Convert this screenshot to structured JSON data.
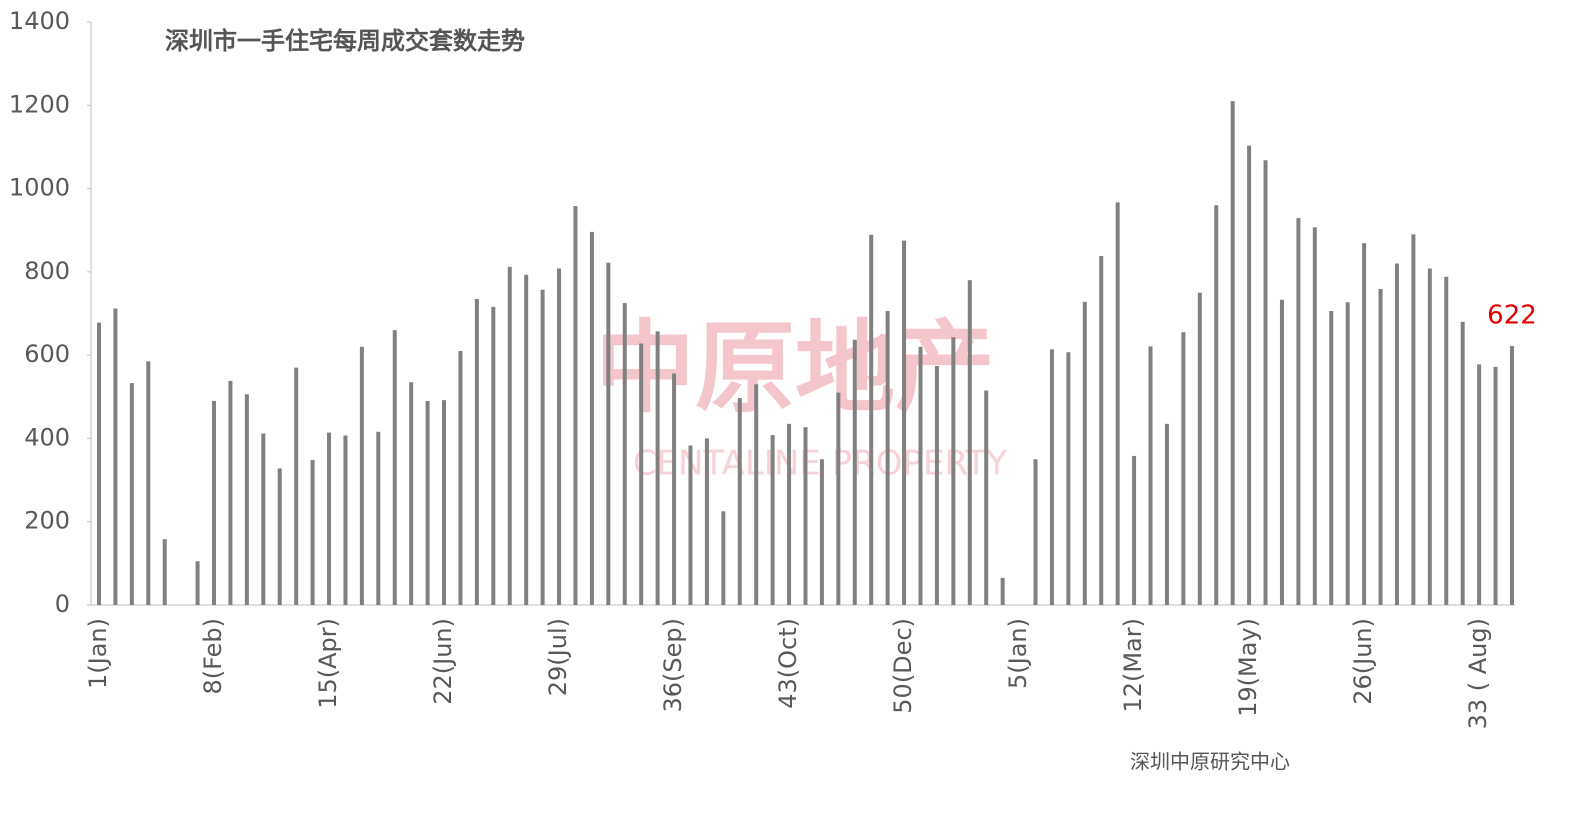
{
  "chart_data": {
    "type": "bar",
    "title": "深圳市一手住宅每周成交套数走势",
    "source": "深圳中原研究中心",
    "watermark": {
      "cn": "中原地产",
      "en": "CENTALINE PROPERTY"
    },
    "color": "#808080",
    "label_color": "#e00000",
    "ylim": [
      0,
      1400
    ],
    "yticks": [
      0,
      200,
      400,
      600,
      800,
      1000,
      1200,
      1400
    ],
    "categories": [
      "1(Jan)",
      null,
      null,
      null,
      null,
      null,
      null,
      "8(Feb)",
      null,
      null,
      null,
      null,
      null,
      null,
      "15(Apr)",
      null,
      null,
      null,
      null,
      null,
      null,
      "22(Jun)",
      null,
      null,
      null,
      null,
      null,
      null,
      "29(Jul)",
      null,
      null,
      null,
      null,
      null,
      null,
      "36(Sep)",
      null,
      null,
      null,
      null,
      null,
      null,
      "43(Oct)",
      null,
      null,
      null,
      null,
      null,
      null,
      "50(Dec)",
      null,
      null,
      null,
      null,
      null,
      null,
      "5(Jan)",
      null,
      null,
      null,
      null,
      null,
      null,
      "12(Mar)",
      null,
      null,
      null,
      null,
      null,
      null,
      "19(May)",
      null,
      null,
      null,
      null,
      null,
      null,
      "26(Jun)",
      null,
      null,
      null,
      null,
      null,
      null,
      "33 ( Aug)",
      null,
      null
    ],
    "values": [
      678,
      712,
      533,
      585,
      158,
      null,
      105,
      490,
      538,
      506,
      412,
      328,
      570,
      348,
      414,
      407,
      620,
      416,
      660,
      535,
      490,
      492,
      610,
      735,
      716,
      812,
      793,
      757,
      808,
      958,
      896,
      822,
      725,
      628,
      657,
      556,
      383,
      400,
      225,
      497,
      530,
      408,
      435,
      427,
      350,
      510,
      637,
      889,
      706,
      875,
      620,
      574,
      643,
      780,
      515,
      65,
      null,
      350,
      614,
      607,
      728,
      838,
      967,
      358,
      621,
      435,
      655,
      750,
      960,
      1210,
      1103,
      1068,
      733,
      929,
      907,
      706,
      727,
      869,
      759,
      820,
      890,
      808,
      788,
      680,
      578,
      572,
      622
    ],
    "value_labels": [
      null,
      null,
      null,
      null,
      null,
      null,
      null,
      null,
      null,
      null,
      null,
      null,
      null,
      null,
      null,
      null,
      null,
      null,
      null,
      null,
      null,
      null,
      null,
      null,
      null,
      null,
      null,
      null,
      null,
      null,
      null,
      null,
      null,
      null,
      null,
      null,
      null,
      null,
      null,
      null,
      null,
      null,
      null,
      null,
      null,
      null,
      null,
      null,
      null,
      null,
      null,
      null,
      null,
      null,
      null,
      null,
      null,
      null,
      null,
      null,
      null,
      null,
      null,
      null,
      null,
      null,
      null,
      null,
      null,
      null,
      null,
      null,
      null,
      null,
      null,
      null,
      null,
      null,
      null,
      null,
      null,
      null,
      null,
      null,
      null,
      null,
      "622"
    ]
  }
}
